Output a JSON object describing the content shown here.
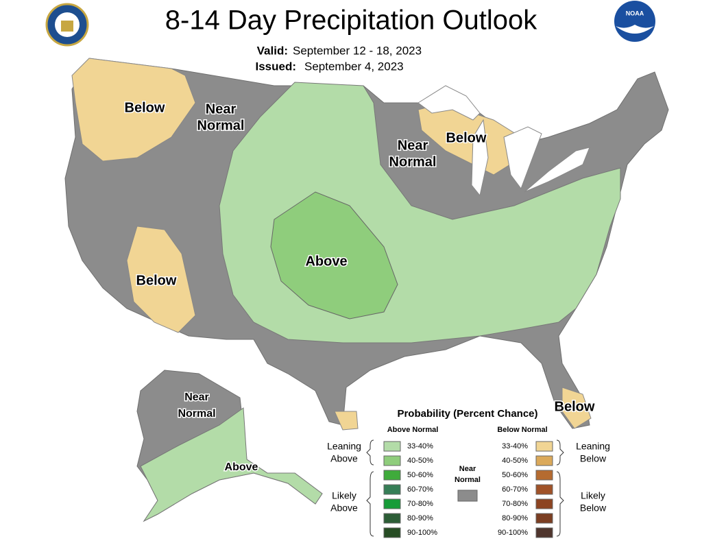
{
  "header": {
    "title": "8-14 Day Precipitation Outlook",
    "valid_label": "Valid:",
    "valid": "September 12 - 18, 2023",
    "issued_label": "Issued:",
    "issued": "September 4, 2023",
    "noaa_logo": "NOAA"
  },
  "regions": [
    {
      "lines": [
        "Below"
      ]
    },
    {
      "lines": [
        "Near",
        "Normal"
      ]
    },
    {
      "lines": [
        "Near",
        "Normal"
      ]
    },
    {
      "lines": [
        "Below"
      ]
    },
    {
      "lines": [
        "Above"
      ]
    },
    {
      "lines": [
        "Below"
      ]
    },
    {
      "lines": [
        "Below"
      ]
    },
    {
      "lines": [
        "Near",
        "Normal"
      ]
    },
    {
      "lines": [
        "Above"
      ]
    }
  ],
  "legend": {
    "title": "Probability (Percent Chance)",
    "above_header": "Above Normal",
    "below_header": "Below Normal",
    "near_normal": [
      "Near",
      "Normal"
    ],
    "near_color": "#8c8c8c",
    "above": [
      {
        "range": "33-40%",
        "color": "#b3dca8"
      },
      {
        "range": "40-50%",
        "color": "#8fcd7c"
      },
      {
        "range": "50-60%",
        "color": "#3fab3b"
      },
      {
        "range": "60-70%",
        "color": "#367e57"
      },
      {
        "range": "70-80%",
        "color": "#169c38"
      },
      {
        "range": "80-90%",
        "color": "#2c5d36"
      },
      {
        "range": "90-100%",
        "color": "#274d24"
      }
    ],
    "below": [
      {
        "range": "33-40%",
        "color": "#f1d594"
      },
      {
        "range": "40-50%",
        "color": "#dba95a"
      },
      {
        "range": "50-60%",
        "color": "#b56b30"
      },
      {
        "range": "60-70%",
        "color": "#a05228"
      },
      {
        "range": "70-80%",
        "color": "#8d4421"
      },
      {
        "range": "80-90%",
        "color": "#7b3e22"
      },
      {
        "range": "90-100%",
        "color": "#4f352d"
      }
    ],
    "groups": [
      {
        "lines": [
          "Leaning",
          "Above"
        ]
      },
      {
        "lines": [
          "Likely",
          "Above"
        ]
      },
      {
        "lines": [
          "Leaning",
          "Below"
        ]
      },
      {
        "lines": [
          "Likely",
          "Below"
        ]
      }
    ]
  }
}
